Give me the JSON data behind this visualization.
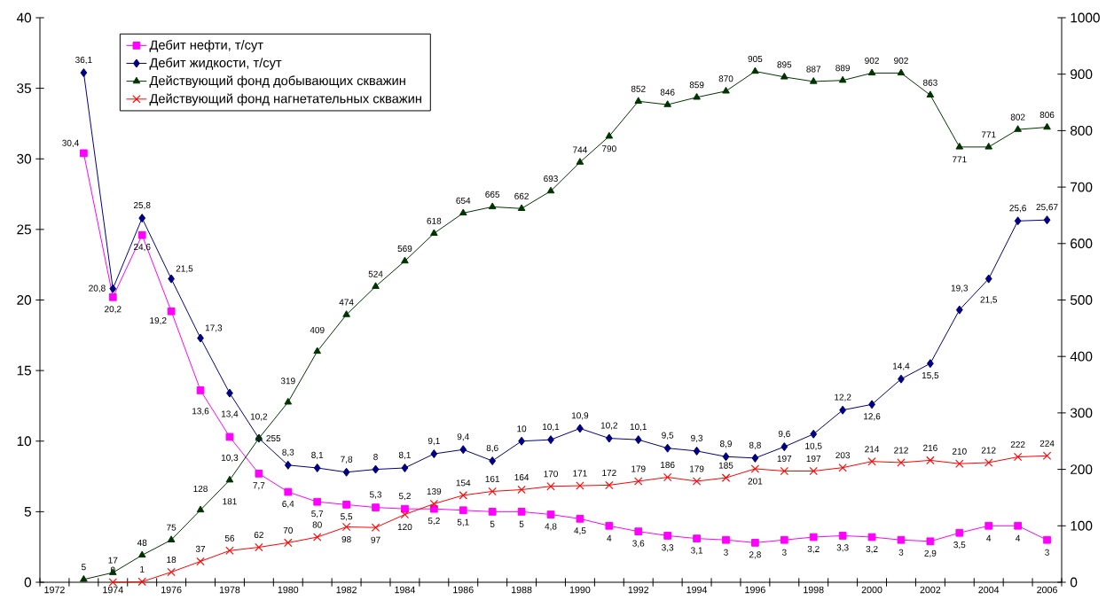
{
  "chart_data": {
    "type": "line",
    "categories": [
      "1972",
      null,
      "1974",
      null,
      "1976",
      null,
      "1978",
      null,
      "1980",
      null,
      "1982",
      null,
      "1984",
      null,
      "1986",
      null,
      "1988",
      null,
      "1990",
      null,
      "1992",
      null,
      "1994",
      null,
      "1996",
      null,
      "1998",
      null,
      "2000",
      null,
      "2002",
      null,
      "2004",
      null,
      "2006"
    ],
    "ylim": [
      0,
      40
    ],
    "yticks": [
      0,
      5,
      10,
      15,
      20,
      25,
      30,
      35,
      40
    ],
    "y2lim": [
      0,
      1000
    ],
    "y2ticks": [
      0,
      100,
      200,
      300,
      400,
      500,
      600,
      700,
      800,
      900,
      1000
    ],
    "legend": "top left",
    "series": [
      {
        "name": "Дебит нефти, т/сут",
        "color": "#ff00ff",
        "marker": "square",
        "values": [
          null,
          30.4,
          20.2,
          24.6,
          19.2,
          13.6,
          10.3,
          7.7,
          6.4,
          5.7,
          5.5,
          5.3,
          5.2,
          5.2,
          5.1,
          5,
          5,
          4.8,
          4.5,
          4,
          3.6,
          3.3,
          3.1,
          3,
          2.8,
          3,
          3.2,
          3.3,
          3.2,
          3,
          2.9,
          3.5,
          4,
          4,
          3
        ],
        "value_labels": [
          null,
          "30,4",
          "20,2",
          "24,6",
          "19,2",
          "13,6",
          "10,3",
          "7,7",
          "6,4",
          "5,7",
          "5,5",
          "5,3",
          "5,2",
          "5,2",
          "5,1",
          "5",
          "5",
          "4,8",
          "4,5",
          "4",
          "3,6",
          "3,3",
          "3,1",
          "3",
          "2,8",
          "3",
          "3,2",
          "3,3",
          "3,2",
          "3",
          "2,9",
          "3,5",
          "4",
          "4",
          "3"
        ]
      },
      {
        "name": "Дебит жидкости, т/сут",
        "color": "#000080",
        "marker": "diamond",
        "values": [
          null,
          36.1,
          20.8,
          25.8,
          21.5,
          17.3,
          13.4,
          10.2,
          8.3,
          8.1,
          7.8,
          8,
          8.1,
          9.1,
          9.4,
          8.6,
          10,
          10.1,
          10.9,
          10.2,
          10.1,
          9.5,
          9.3,
          8.9,
          8.8,
          9.6,
          10.5,
          12.2,
          12.6,
          14.4,
          15.5,
          19.3,
          21.5,
          25.6,
          25.67
        ],
        "value_labels": [
          null,
          "36,1",
          "20,8",
          "25,8",
          "21,5",
          "17,3",
          "13,4",
          "10,2",
          "8,3",
          "8,1",
          "7,8",
          "8",
          "8,1",
          "9,1",
          "9,4",
          "8,6",
          "10",
          "10,1",
          "10,9",
          "10,2",
          "10,1",
          "9,5",
          "9,3",
          "8,9",
          "8,8",
          "9,6",
          "10,5",
          "12,2",
          "12,6",
          "14,4",
          "15,5",
          "19,3",
          "21,5",
          "25,6",
          "25,67"
        ]
      },
      {
        "name": "Действующий фонд добывающих скважин",
        "color": "#003300",
        "marker": "triangle",
        "axis": "y2",
        "values": [
          null,
          5,
          17,
          48,
          75,
          128,
          181,
          255,
          319,
          409,
          474,
          524,
          569,
          618,
          654,
          665,
          662,
          693,
          744,
          790,
          852,
          846,
          859,
          870,
          905,
          895,
          887,
          889,
          902,
          902,
          863,
          771,
          771,
          802,
          806
        ],
        "value_labels": [
          null,
          "5",
          "17",
          "48",
          "75",
          "128",
          "181",
          "255",
          "319",
          "409",
          "474",
          "524",
          "569",
          "618",
          "654",
          "665",
          "662",
          "693",
          "744",
          "790",
          "852",
          "846",
          "859",
          "870",
          "905",
          "895",
          "887",
          "889",
          "902",
          "902",
          "863",
          "771",
          "771",
          "802",
          "806"
        ]
      },
      {
        "name": "Действующий фонд нагнетательных скважин",
        "color": "#ff0000",
        "marker": "cross",
        "axis": "y2",
        "values": [
          null,
          null,
          0,
          1,
          18,
          37,
          56,
          62,
          70,
          80,
          98,
          97,
          120,
          139,
          154,
          161,
          164,
          170,
          171,
          172,
          179,
          186,
          179,
          185,
          201,
          197,
          197,
          203,
          214,
          212,
          216,
          210,
          212,
          222,
          224
        ],
        "value_labels": [
          null,
          null,
          "0",
          "1",
          "18",
          "37",
          "56",
          "62",
          "70",
          "80",
          "98",
          "97",
          "120",
          "139",
          "154",
          "161",
          "164",
          "170",
          "171",
          "172",
          "179",
          "186",
          "179",
          "185",
          "201",
          "197",
          "197",
          "203",
          "214",
          "212",
          "216",
          "210",
          "212",
          "222",
          "224"
        ]
      }
    ]
  }
}
